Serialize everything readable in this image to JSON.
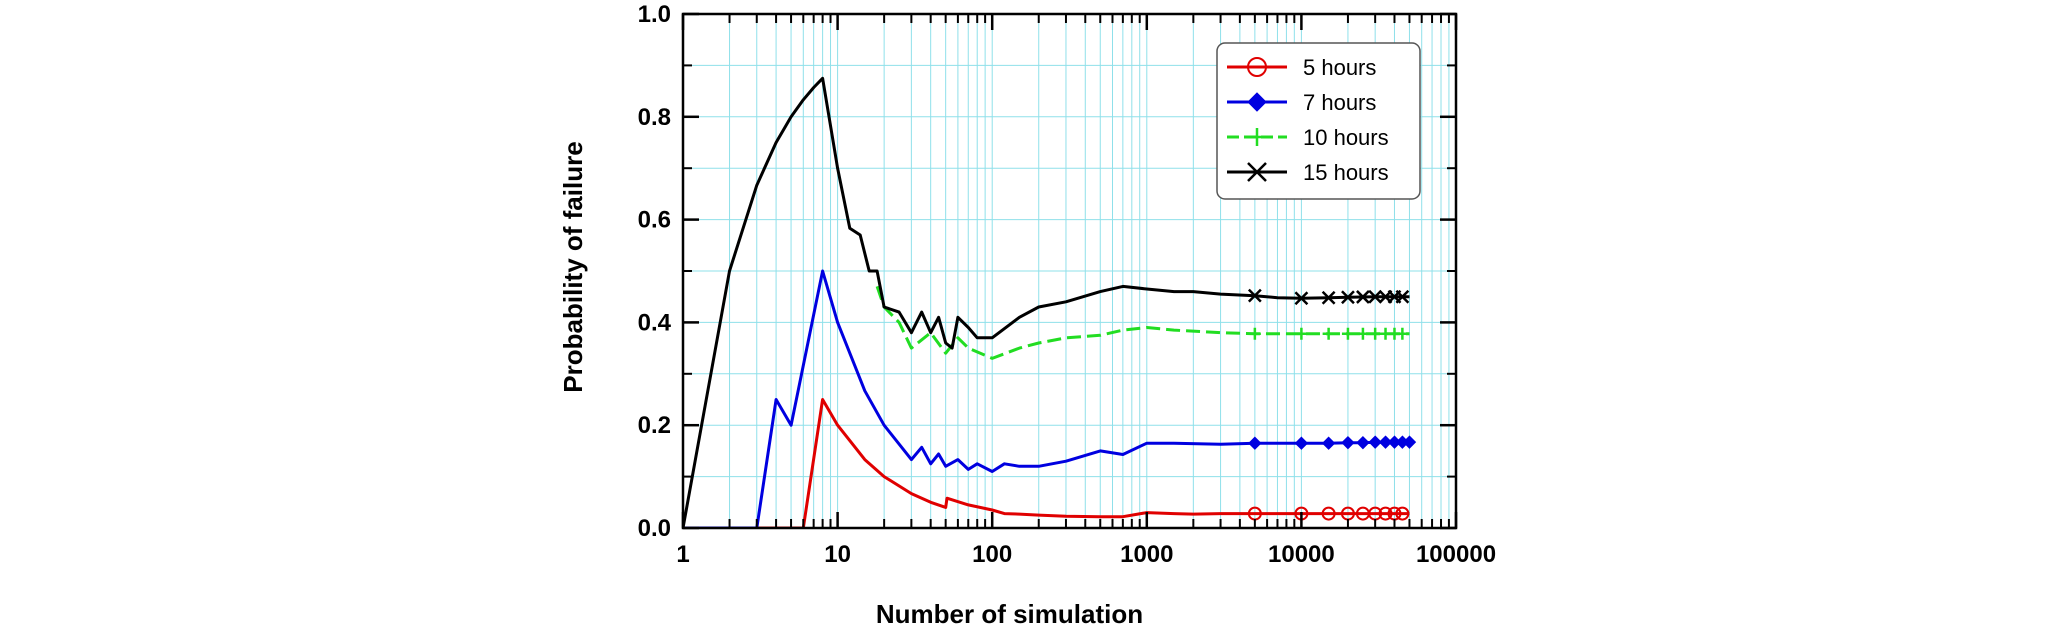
{
  "chart_data": {
    "type": "line",
    "title": "",
    "xlabel": "Number of simulation",
    "ylabel": "Probability of failure",
    "xscale": "log",
    "xlim": [
      1,
      100000
    ],
    "ylim": [
      0,
      1.0
    ],
    "x_ticks": [
      1,
      10,
      100,
      1000,
      10000,
      100000
    ],
    "x_tick_labels": [
      "1",
      "10",
      "100",
      "1000",
      "10000",
      "100000"
    ],
    "y_ticks": [
      0,
      0.2,
      0.4,
      0.6,
      0.8,
      1.0
    ],
    "y_tick_labels": [
      "0.0",
      "0.2",
      "0.4",
      "0.6",
      "0.8",
      "1.0"
    ],
    "grid": true,
    "grid_color": "#8fe0ea",
    "legend_position": "top-right",
    "series": [
      {
        "name": "5 hours",
        "color": "#e00000",
        "marker": "circle",
        "dash": "solid",
        "x": [
          1,
          2,
          3,
          5,
          6,
          8,
          10,
          15,
          20,
          30,
          40,
          50,
          51,
          70,
          100,
          120,
          150,
          200,
          300,
          500,
          700,
          1000,
          1500,
          2000,
          3000,
          5000,
          10000,
          15000,
          20000,
          25000,
          30000,
          35000,
          40000,
          45000,
          50000
        ],
        "y": [
          0,
          0,
          0,
          0,
          0,
          0.25,
          0.2,
          0.133,
          0.1,
          0.067,
          0.05,
          0.04,
          0.058,
          0.045,
          0.035,
          0.028,
          0.027,
          0.025,
          0.023,
          0.022,
          0.022,
          0.03,
          0.028,
          0.027,
          0.028,
          0.028,
          0.028,
          0.028,
          0.028,
          0.028,
          0.028,
          0.028,
          0.028,
          0.028,
          0.028
        ],
        "marker_x": [
          5000,
          10000,
          15000,
          20000,
          25000,
          30000,
          35000,
          40000,
          45000
        ]
      },
      {
        "name": "7 hours",
        "color": "#0000e0",
        "marker": "diamond",
        "dash": "solid",
        "x": [
          1,
          2,
          3,
          4,
          5,
          8,
          10,
          15,
          20,
          30,
          35,
          40,
          45,
          50,
          60,
          70,
          80,
          100,
          120,
          150,
          200,
          300,
          500,
          700,
          1000,
          1500,
          3000,
          5000,
          10000,
          15000,
          20000,
          25000,
          30000,
          35000,
          40000,
          45000,
          50000
        ],
        "y": [
          0,
          0,
          0,
          0.25,
          0.2,
          0.5,
          0.4,
          0.267,
          0.2,
          0.133,
          0.157,
          0.125,
          0.144,
          0.12,
          0.133,
          0.114,
          0.125,
          0.11,
          0.125,
          0.12,
          0.12,
          0.13,
          0.15,
          0.143,
          0.165,
          0.165,
          0.163,
          0.165,
          0.165,
          0.165,
          0.166,
          0.166,
          0.167,
          0.167,
          0.167,
          0.167,
          0.167
        ],
        "marker_x": [
          5000,
          10000,
          15000,
          20000,
          25000,
          30000,
          35000,
          40000,
          45000,
          50000
        ]
      },
      {
        "name": "10 hours",
        "color": "#22dd22",
        "marker": "plus",
        "dash": "dashed",
        "x": [
          18,
          20,
          25,
          30,
          40,
          50,
          60,
          70,
          100,
          150,
          200,
          300,
          500,
          700,
          1000,
          1500,
          3000,
          5000,
          10000,
          15000,
          20000,
          30000,
          40000,
          50000
        ],
        "y": [
          0.47,
          0.43,
          0.4,
          0.35,
          0.38,
          0.34,
          0.37,
          0.35,
          0.33,
          0.35,
          0.36,
          0.37,
          0.375,
          0.385,
          0.39,
          0.385,
          0.38,
          0.378,
          0.378,
          0.378,
          0.378,
          0.378,
          0.378,
          0.378
        ],
        "marker_x": [
          5000,
          10000,
          15000,
          20000,
          25000,
          30000,
          35000,
          40000,
          45000
        ]
      },
      {
        "name": "15 hours",
        "color": "#000000",
        "marker": "x",
        "dash": "solid",
        "x": [
          1,
          2,
          3,
          4,
          5,
          6,
          7,
          8,
          10,
          12,
          14,
          16,
          18,
          20,
          25,
          30,
          35,
          40,
          45,
          50,
          55,
          60,
          70,
          80,
          100,
          150,
          200,
          300,
          500,
          700,
          1000,
          1500,
          2000,
          3000,
          5000,
          7000,
          10000,
          15000,
          20000,
          30000,
          40000,
          50000
        ],
        "y": [
          0,
          0.5,
          0.667,
          0.75,
          0.8,
          0.833,
          0.857,
          0.875,
          0.7,
          0.583,
          0.57,
          0.5,
          0.5,
          0.43,
          0.42,
          0.38,
          0.42,
          0.38,
          0.41,
          0.36,
          0.35,
          0.41,
          0.39,
          0.37,
          0.37,
          0.41,
          0.43,
          0.44,
          0.46,
          0.47,
          0.465,
          0.46,
          0.46,
          0.455,
          0.452,
          0.448,
          0.447,
          0.448,
          0.449,
          0.45,
          0.45,
          0.45
        ],
        "marker_x": [
          5000,
          10000,
          15000,
          20000,
          25000,
          30000,
          35000,
          40000,
          45000
        ]
      }
    ]
  }
}
